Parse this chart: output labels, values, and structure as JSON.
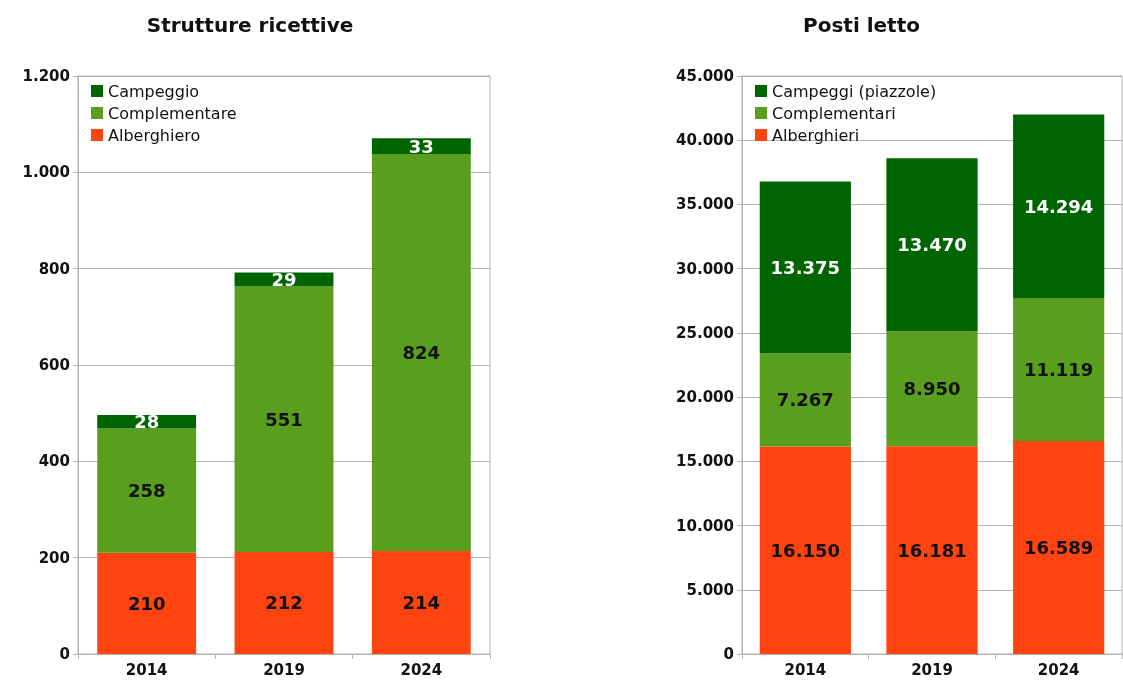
{
  "chart_data": [
    {
      "type": "bar",
      "title": "Strutture ricettive",
      "categories": [
        "2014",
        "2019",
        "2024"
      ],
      "stacked": true,
      "data_labels": true,
      "grid": "y",
      "legend": "top left",
      "ylim": [
        0,
        1200
      ],
      "yticks": [
        0,
        200,
        400,
        600,
        800,
        {
          "value": 1000,
          "label": "1.000"
        },
        {
          "value": 1200,
          "label": "1.200"
        }
      ],
      "series": [
        {
          "name": "Alberghiero",
          "color": "#ff4411",
          "values": [
            210,
            212,
            214
          ]
        },
        {
          "name": "Complementare",
          "color": "#5a9e1e",
          "values": [
            258,
            551,
            824
          ]
        },
        {
          "name": "Campeggio",
          "color": "#006400",
          "values": [
            28,
            29,
            33
          ]
        }
      ]
    },
    {
      "type": "bar",
      "title": "Posti letto",
      "categories": [
        "2014",
        "2019",
        "2024"
      ],
      "stacked": true,
      "grid": "y",
      "legend": "top left",
      "ylim": [
        0,
        45000
      ],
      "yticks": [
        0,
        {
          "value": 5000,
          "label": "5.000"
        },
        {
          "value": 10000,
          "label": "10.000"
        },
        {
          "value": 15000,
          "label": "15.000"
        },
        {
          "value": 20000,
          "label": "20.000"
        },
        {
          "value": 25000,
          "label": "25.000"
        },
        {
          "value": 30000,
          "label": "30.000"
        },
        {
          "value": 35000,
          "label": "35.000"
        },
        {
          "value": 40000,
          "label": "40.000"
        },
        {
          "value": 45000,
          "label": "45.000"
        }
      ],
      "series": [
        {
          "name": "Alberghieri",
          "color": "#ff4411",
          "values": [
            16150,
            16181,
            16589
          ],
          "value_labels": [
            "16.150",
            "16.181",
            "16.589"
          ]
        },
        {
          "name": "Complementari",
          "color": "#5a9e1e",
          "values": [
            7267,
            8950,
            11119
          ],
          "value_labels": [
            "7.267",
            "8.950",
            "11.119"
          ]
        },
        {
          "name": "Campeggi (piazzole)",
          "color": "#006400",
          "values": [
            13375,
            13470,
            14294
          ],
          "value_labels": [
            "13.375",
            "13.470",
            "14.294"
          ]
        }
      ]
    }
  ]
}
